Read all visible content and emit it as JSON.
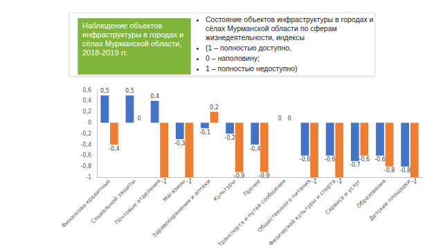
{
  "slide": {
    "heading": "Наблюдение объектов инфраструктуры в городах и сёлах Мурманской области, 2018-2019 гг.",
    "bullets": [
      "Состояние объектов инфраструктуры в городах и сёлах Мурманской области по сферам жизнедеятельности, индексы",
      "(1 – полностью доступно,",
      "0 – наполовину;",
      "1 – полностью недоступно)"
    ]
  },
  "chart_data": {
    "type": "bar",
    "categories": [
      "Финансово-кредитные",
      "Социальной защиты",
      "Почтовые отделения",
      "Магазины",
      "Здравоохранения и аптеки",
      "Культуры",
      "Прочие",
      "Транспорта и путей сообщения",
      "Общественного питания",
      "Физической культуры и спорта",
      "Сервиса и услуг",
      "Образования",
      "Детские площадки"
    ],
    "series": [
      {
        "color": "#4472c4",
        "values": [
          0.5,
          0.5,
          0.4,
          -0.3,
          -0.1,
          -0.2,
          -0.4,
          0,
          -0.6,
          -0.6,
          -0.7,
          -0.6,
          -0.8
        ],
        "value_labels": [
          "0,5",
          "0,5",
          "0,4",
          "-0,3",
          "-0,1",
          "-0,2",
          "-0,4",
          "0",
          "-0,6",
          "-0,6",
          "-0,7",
          "-0,6",
          "-0,8"
        ]
      },
      {
        "color": "#ed7d31",
        "values": [
          -0.4,
          0,
          -1,
          -1,
          0.2,
          -0.9,
          -0.9,
          0,
          -1,
          -1,
          -0.6,
          -0.8,
          -1
        ],
        "value_labels": [
          "-0,4",
          "0",
          "-1",
          "-1",
          "0,2",
          "-0,9",
          "-0,9",
          "0",
          "-1",
          "-1",
          "-0,6",
          "-0,8",
          "-1"
        ]
      }
    ],
    "ylim": [
      -1,
      0.6
    ],
    "yticks": [
      -1,
      {
        "value": -0.8,
        "label": "-0,8"
      },
      {
        "value": -0.6,
        "label": "-0,6"
      },
      {
        "value": -0.4,
        "label": "-0,4"
      },
      {
        "value": -0.2,
        "label": "-0,2"
      },
      0,
      {
        "value": 0.2,
        "label": "0,2"
      },
      {
        "value": 0.4,
        "label": "0,4"
      },
      {
        "value": 0.6,
        "label": "0,6"
      }
    ],
    "grid": false,
    "data_labels": true
  }
}
